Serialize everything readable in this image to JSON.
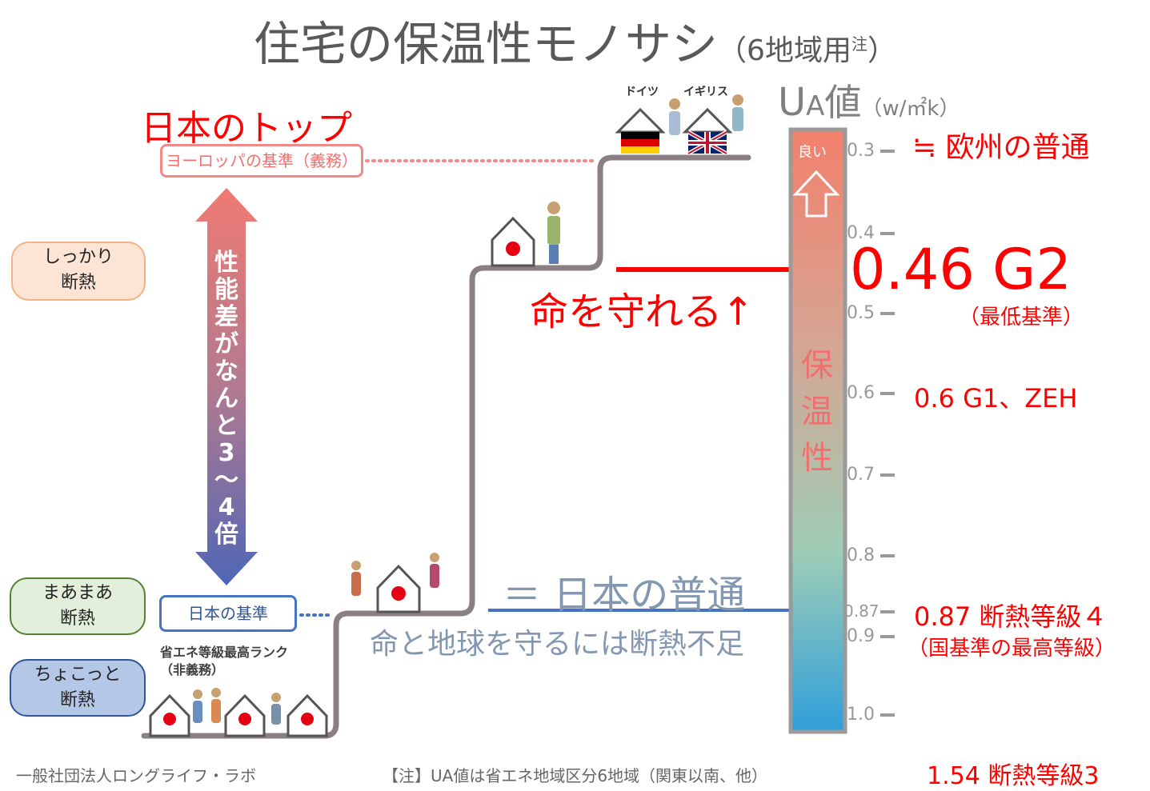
{
  "title": {
    "main": "住宅の保温性モノサシ",
    "sub_open": "（6地域用",
    "sup": "注",
    "sub_close": "）"
  },
  "ua_header": {
    "u": "U",
    "a": "A",
    "chi": "値",
    "unit": "（w/㎡k）"
  },
  "left_top": {
    "japan_top": "日本のトップ",
    "europe_standard": "ヨーロッパの基準（義務）"
  },
  "vertical_arrow_text": [
    "性",
    "能",
    "差",
    "が",
    "な",
    "ん",
    "と",
    "3",
    "〜",
    "4",
    "倍"
  ],
  "levels": {
    "shikkari": [
      "しっかり",
      "断熱"
    ],
    "maamaa": [
      "まあまあ",
      "断熱"
    ],
    "chokotto": [
      "ちょこっと",
      "断熱"
    ]
  },
  "japan_standard": {
    "label": "日本の基準",
    "note1": "省エネ等級最高ランク",
    "note2": "（非義務）"
  },
  "countries": {
    "germany": "ドイツ",
    "uk": "イギリス"
  },
  "messages": {
    "life_protect": "命を守れる↑",
    "japan_normal": "＝ 日本の普通",
    "insufficient": "命と地球を守るには断熱不足"
  },
  "gauge": {
    "good": "良い",
    "vertical_label": [
      "保",
      "温",
      "性"
    ],
    "ticks": [
      "0.3",
      "0.4",
      "0.5",
      "0.6",
      "0.7",
      "0.8",
      "0.87",
      "0.9",
      "1.0"
    ]
  },
  "right_labels": {
    "europe_normal": "≒ 欧州の普通",
    "g2": "0.46 G2",
    "g2_note": "（最低基準）",
    "g1": "0.6  G1、ZEH",
    "grade4": "0.87 断熱等級４",
    "grade4_note": "（国基準の最高等級）",
    "grade3": "1.54 断熱等級3"
  },
  "footer": {
    "org": "一般社団法人ロングライフ・ラボ",
    "note": "【注】UA値は省エネ地域区分6地域（関東以南、他）"
  },
  "colors": {
    "red": "#ff0000",
    "blue_arrow": "#4472c4",
    "grey_text": "#8497b0",
    "step_line": "#8a7f85"
  }
}
